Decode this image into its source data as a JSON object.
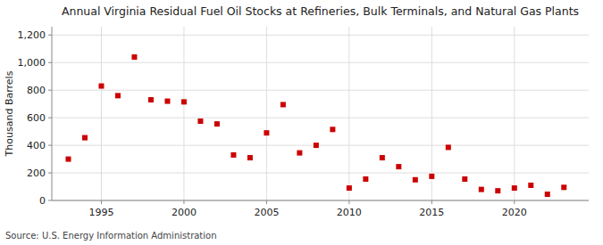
{
  "chart_data": {
    "type": "scatter",
    "title": "Annual Virginia Residual Fuel Oil Stocks at Refineries, Bulk Terminals, and Natural Gas Plants",
    "ylabel": "Thousand Barrels",
    "source": "Source: U.S. Energy Information Administration",
    "x": [
      1993,
      1994,
      1995,
      1996,
      1997,
      1998,
      1999,
      2000,
      2001,
      2002,
      2003,
      2004,
      2005,
      2006,
      2007,
      2008,
      2009,
      2010,
      2011,
      2012,
      2013,
      2014,
      2015,
      2016,
      2017,
      2018,
      2019,
      2020,
      2021,
      2022,
      2023
    ],
    "values": [
      300,
      455,
      830,
      760,
      1040,
      730,
      720,
      715,
      575,
      555,
      330,
      310,
      490,
      695,
      345,
      400,
      515,
      90,
      155,
      310,
      245,
      150,
      175,
      385,
      155,
      80,
      70,
      90,
      110,
      45,
      95
    ],
    "color": "#cc0000",
    "marker": "square",
    "xlim": [
      1992.0,
      2024.5
    ],
    "xticks": [
      1995,
      2000,
      2005,
      2010,
      2015,
      2020
    ],
    "ylim": [
      0,
      1260
    ],
    "yticks": [
      0,
      200,
      400,
      600,
      800,
      {
        "value": 1000,
        "label": "1,000"
      },
      {
        "value": 1200,
        "label": "1,200"
      }
    ],
    "grid": true
  }
}
